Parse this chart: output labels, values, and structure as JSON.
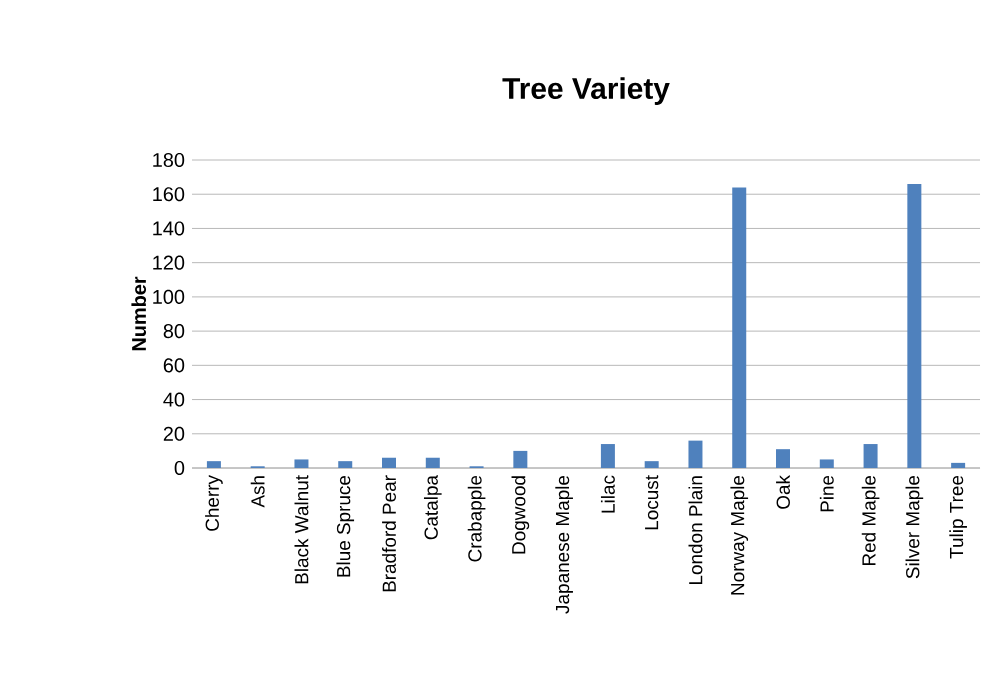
{
  "chart_data": {
    "type": "bar",
    "title": "Tree Variety",
    "ylabel": "Number",
    "categories": [
      "Cherry",
      "Ash",
      "Black Walnut",
      "Blue Spruce",
      "Bradford Pear",
      "Catalpa",
      "Crabapple",
      "Dogwood",
      "Japanese Maple",
      "Lilac",
      "Locust",
      "London Plain",
      "Norway Maple",
      "Oak",
      "Pine",
      "Red Maple",
      "Silver Maple",
      "Tulip Tree"
    ],
    "values": [
      4,
      1,
      5,
      4,
      6,
      6,
      1,
      10,
      0,
      14,
      4,
      16,
      164,
      11,
      5,
      14,
      166,
      3
    ],
    "color": "#4f81bd",
    "ylim": [
      0,
      180
    ],
    "yticks": [
      0,
      20,
      40,
      60,
      80,
      100,
      120,
      140,
      160,
      180
    ],
    "grid": "y"
  }
}
